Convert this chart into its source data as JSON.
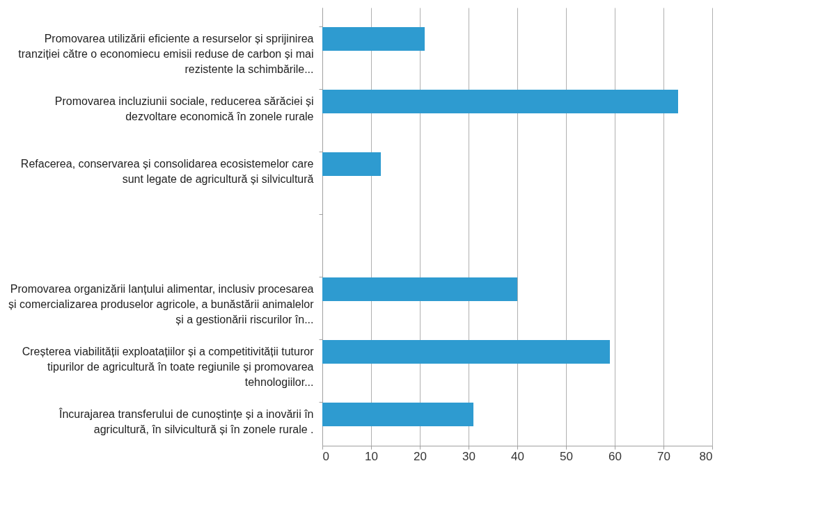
{
  "chart_data": {
    "type": "bar",
    "orientation": "horizontal",
    "categories": [
      "Promovarea utilizării eficiente a resurselor și sprijinirea tranziției către o economiecu emisii reduse de carbon și mai rezistente la schimbările...",
      "Promovarea incluziunii sociale, reducerea sărăciei și dezvoltare economică în zonele rurale",
      "Refacerea, conservarea și consolidarea ecosistemelor care sunt legate de agricultură și silvicultură",
      null,
      "Promovarea organizării lanțului alimentar, inclusiv procesarea și comercializarea produselor agricole, a bunăstării animalelor și a gestionării riscurilor în...",
      "Creșterea viabilității exploatațiilor și a competitivității tuturor tipurilor de agricultură în toate regiunile și promovarea tehnologiilor...",
      "Încurajarea transferului de cunoștințe și a inovării în agricultură, în silvicultură și în zonele rurale ."
    ],
    "values": [
      21,
      73,
      12,
      null,
      40,
      59,
      31
    ],
    "color": "#2e9bd0",
    "xlim": [
      0,
      80
    ],
    "xticks": [
      0,
      10,
      20,
      30,
      40,
      50,
      60,
      70,
      80
    ],
    "grid": "x"
  }
}
